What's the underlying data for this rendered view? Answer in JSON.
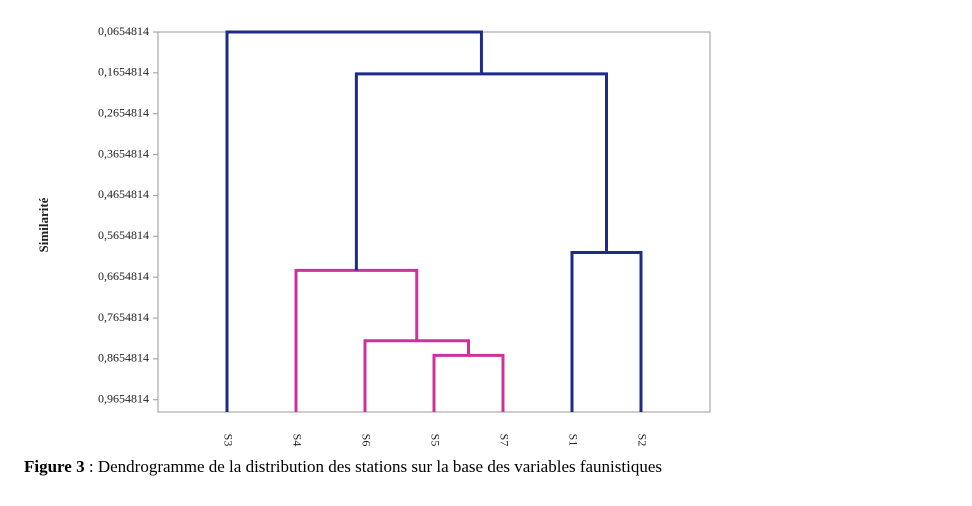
{
  "chart_data": {
    "type": "dendrogram",
    "y_label": "Similarité",
    "caption_label": "Figure 3",
    "caption_text": " : Dendrogramme de la distribution des stations sur la base des variables faunistiques",
    "ylim": [
      0.0654814,
      0.9954814
    ],
    "inverted": true,
    "yticks": [
      {
        "value": 0.0654814,
        "label": "0,0654814"
      },
      {
        "value": 0.1654814,
        "label": "0,1654814"
      },
      {
        "value": 0.2654814,
        "label": "0,2654814"
      },
      {
        "value": 0.3654814,
        "label": "0,3654814"
      },
      {
        "value": 0.4654814,
        "label": "0,4654814"
      },
      {
        "value": 0.5654814,
        "label": "0,5654814"
      },
      {
        "value": 0.6654814,
        "label": "0,6654814"
      },
      {
        "value": 0.7654814,
        "label": "0,7654814"
      },
      {
        "value": 0.8654814,
        "label": "0,8654814"
      },
      {
        "value": 0.9654814,
        "label": "0,9654814"
      }
    ],
    "tree": {
      "height": 0.0654814,
      "color": "#1f2a8a",
      "children": [
        {
          "label": "S3"
        },
        {
          "height": 0.168,
          "color": "#1f2a8a",
          "children": [
            {
              "height": 0.649,
              "color": "#cc3399",
              "children": [
                {
                  "label": "S4"
                },
                {
                  "height": 0.821,
                  "color": "#cc3399",
                  "children": [
                    {
                      "label": "S6"
                    },
                    {
                      "height": 0.857,
                      "color": "#cc3399",
                      "children": [
                        {
                          "label": "S5"
                        },
                        {
                          "label": "S7"
                        }
                      ]
                    }
                  ]
                }
              ]
            },
            {
              "height": 0.605,
              "color": "#1f2a8a",
              "children": [
                {
                  "label": "S1"
                },
                {
                  "label": "S2"
                }
              ]
            }
          ]
        }
      ]
    }
  }
}
